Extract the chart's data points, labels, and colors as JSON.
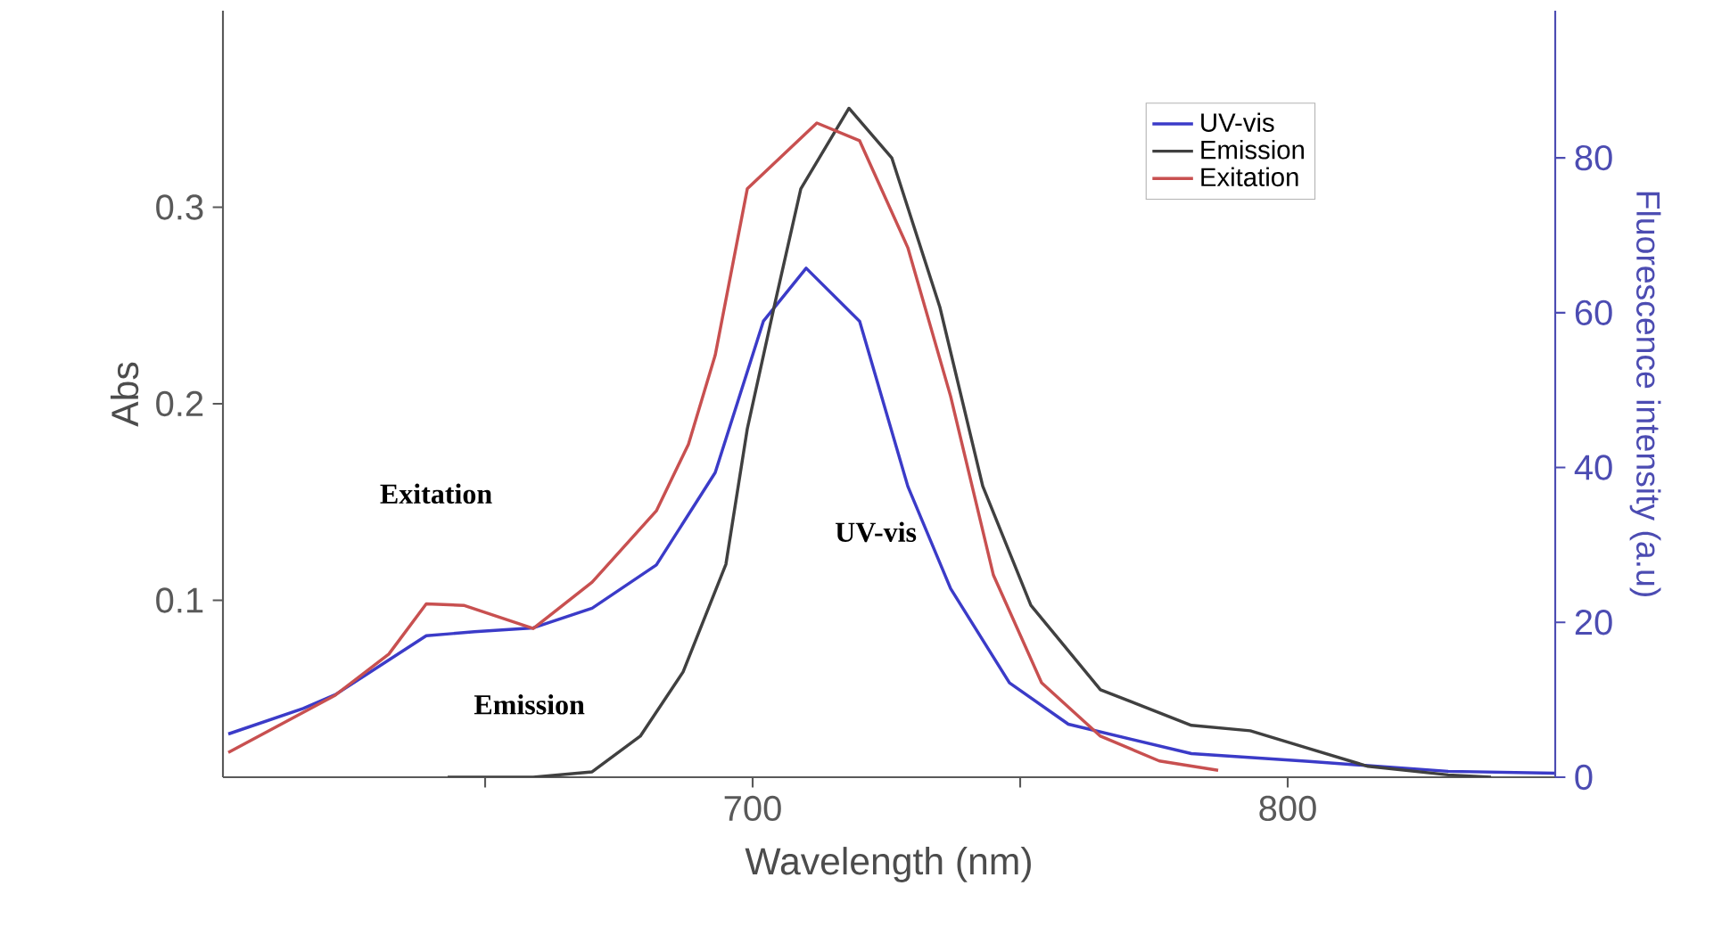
{
  "chart_data": {
    "type": "line",
    "xlabel": "Wavelength (nm)",
    "ylabel": "Abs",
    "y2label": "Fluorescence intensity (a.u)",
    "xlim": [
      601,
      850
    ],
    "xticks": [
      700,
      800,
      {
        "value": 650,
        "label": null
      },
      {
        "value": 750,
        "label": null
      }
    ],
    "ylim": [
      0.01,
      0.4
    ],
    "yticks": [
      0.1,
      0.2,
      0.3
    ],
    "y2lim": [
      0,
      99
    ],
    "y2ticks": [
      0,
      20,
      40,
      60,
      80
    ],
    "legend": "top right",
    "marker": "none",
    "line_style": "solid",
    "grid": false,
    "annotations": [
      "Exitation",
      "Emission",
      "UV-vis"
    ],
    "series": [
      {
        "name": "UV-vis",
        "color": "#3b3bc8",
        "x": [
          602,
          616,
          622,
          639,
          648,
          659,
          670,
          682,
          693,
          702,
          710,
          720,
          729,
          737,
          748,
          759,
          782,
          804,
          830,
          850
        ],
        "values": [
          0.032,
          0.045,
          0.052,
          0.082,
          0.084,
          0.086,
          0.096,
          0.118,
          0.165,
          0.242,
          0.269,
          0.242,
          0.158,
          0.106,
          0.058,
          0.037,
          0.022,
          0.018,
          0.013,
          0.012
        ]
      },
      {
        "name": "Emission",
        "color": "#404040",
        "axis": "y2",
        "x": [
          643,
          659,
          670,
          679,
          687,
          695,
          699,
          704,
          709,
          718,
          726,
          735,
          743,
          752,
          765,
          782,
          793,
          804,
          815,
          830,
          838
        ],
        "values": [
          0,
          0,
          0.7,
          5.3,
          13.6,
          27.5,
          45,
          60.7,
          76,
          86.4,
          80,
          60.7,
          37.6,
          22.2,
          11.3,
          6.7,
          6,
          3.7,
          1.4,
          0.3,
          0
        ]
      },
      {
        "name": "Exitation",
        "color": "#c85050",
        "axis": "y2",
        "x": [
          602,
          622,
          632,
          639,
          646,
          653,
          659,
          670,
          682,
          688,
          693,
          699,
          712,
          720,
          729,
          737,
          745,
          754,
          765,
          776,
          787
        ],
        "values": [
          3.2,
          10.6,
          15.9,
          22.4,
          22.2,
          20.6,
          19.2,
          25.2,
          34.4,
          43,
          54.5,
          76,
          84.5,
          82.2,
          68.4,
          49.2,
          26.1,
          12.2,
          5.3,
          2.1,
          0.9
        ]
      }
    ]
  }
}
